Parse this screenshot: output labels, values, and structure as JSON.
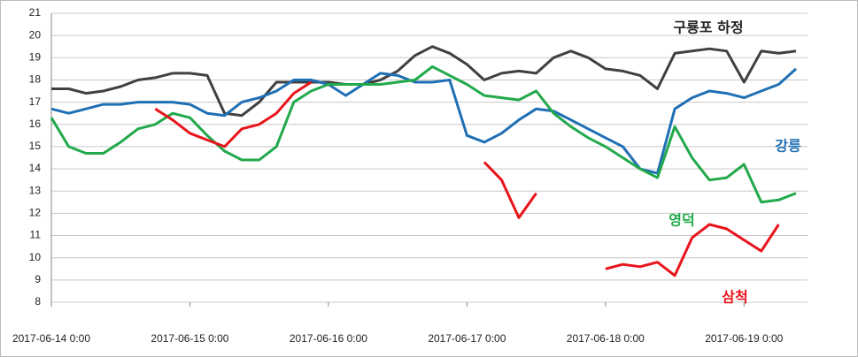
{
  "chart_data": {
    "type": "line",
    "x": [
      "2017-06-14 0:00",
      "2017-06-14 3:00",
      "2017-06-14 6:00",
      "2017-06-14 9:00",
      "2017-06-14 12:00",
      "2017-06-14 15:00",
      "2017-06-14 18:00",
      "2017-06-14 21:00",
      "2017-06-15 0:00",
      "2017-06-15 3:00",
      "2017-06-15 6:00",
      "2017-06-15 9:00",
      "2017-06-15 12:00",
      "2017-06-15 15:00",
      "2017-06-15 18:00",
      "2017-06-15 21:00",
      "2017-06-16 0:00",
      "2017-06-16 3:00",
      "2017-06-16 6:00",
      "2017-06-16 9:00",
      "2017-06-16 12:00",
      "2017-06-16 15:00",
      "2017-06-16 18:00",
      "2017-06-16 21:00",
      "2017-06-17 0:00",
      "2017-06-17 3:00",
      "2017-06-17 6:00",
      "2017-06-17 9:00",
      "2017-06-17 12:00",
      "2017-06-17 15:00",
      "2017-06-17 18:00",
      "2017-06-17 21:00",
      "2017-06-18 0:00",
      "2017-06-18 3:00",
      "2017-06-18 6:00",
      "2017-06-18 9:00",
      "2017-06-18 12:00",
      "2017-06-18 15:00",
      "2017-06-18 18:00",
      "2017-06-18 21:00",
      "2017-06-19 0:00",
      "2017-06-19 3:00",
      "2017-06-19 6:00",
      "2017-06-19 9:00"
    ],
    "series": [
      {
        "name": "구룡포 하정",
        "color": "#404040",
        "values": [
          17.6,
          17.6,
          17.4,
          17.5,
          17.7,
          18.0,
          18.1,
          18.3,
          18.3,
          18.2,
          16.5,
          16.4,
          17.0,
          17.9,
          17.9,
          17.9,
          17.9,
          17.8,
          17.8,
          18.0,
          18.4,
          19.1,
          19.5,
          19.2,
          18.7,
          18.0,
          18.3,
          18.4,
          18.3,
          19.0,
          19.3,
          19.0,
          18.5,
          18.4,
          18.2,
          17.6,
          19.2,
          19.3,
          19.4,
          19.3,
          17.9,
          19.3,
          19.2,
          19.3
        ]
      },
      {
        "name": "강릉",
        "color": "#1f6fb4",
        "values": [
          16.7,
          16.5,
          16.7,
          16.9,
          16.9,
          17.0,
          17.0,
          17.0,
          16.9,
          16.5,
          16.4,
          17.0,
          17.2,
          17.5,
          18.0,
          18.0,
          17.8,
          17.3,
          17.8,
          18.3,
          18.2,
          17.9,
          17.9,
          18.0,
          15.5,
          15.2,
          15.6,
          16.2,
          16.7,
          16.6,
          16.2,
          15.8,
          15.4,
          15.0,
          14.0,
          13.8,
          16.7,
          17.2,
          17.5,
          17.4,
          17.2,
          17.5,
          17.8,
          18.5
        ]
      },
      {
        "name": "영덕",
        "color": "#22a94b",
        "values": [
          16.3,
          15.0,
          14.7,
          14.7,
          15.2,
          15.8,
          16.0,
          16.5,
          16.3,
          15.5,
          14.8,
          14.4,
          14.4,
          15.0,
          17.0,
          17.5,
          17.8,
          17.8,
          17.8,
          17.8,
          17.9,
          18.0,
          18.6,
          18.2,
          17.8,
          17.3,
          17.2,
          17.1,
          17.5,
          16.5,
          15.9,
          15.4,
          15.0,
          14.5,
          14.0,
          13.6,
          15.9,
          14.5,
          13.5,
          13.6,
          14.2,
          12.5,
          12.6,
          12.9
        ]
      },
      {
        "name": "삼척",
        "color": "#e8141b",
        "values": [
          null,
          null,
          null,
          null,
          null,
          null,
          16.7,
          16.2,
          15.6,
          15.3,
          15.0,
          15.8,
          16.0,
          16.5,
          17.4,
          17.9,
          null,
          null,
          null,
          null,
          null,
          null,
          null,
          null,
          null,
          14.3,
          13.5,
          11.8,
          12.9,
          null,
          null,
          null,
          9.5,
          9.7,
          9.6,
          9.8,
          9.2,
          10.9,
          11.5,
          11.3,
          10.8,
          10.3,
          11.5,
          null
        ]
      }
    ],
    "xlim": [
      "2017-06-14 0:00",
      "2017-06-19 11:00"
    ],
    "xticks": [
      "2017-06-14 0:00",
      "2017-06-15 0:00",
      "2017-06-16 0:00",
      "2017-06-17 0:00",
      "2017-06-18 0:00",
      "2017-06-19 0:00"
    ],
    "ylim": [
      8,
      21
    ],
    "yticks": [
      8,
      9,
      10,
      11,
      12,
      13,
      14,
      15,
      16,
      17,
      18,
      19,
      20,
      21
    ],
    "grid": true
  }
}
